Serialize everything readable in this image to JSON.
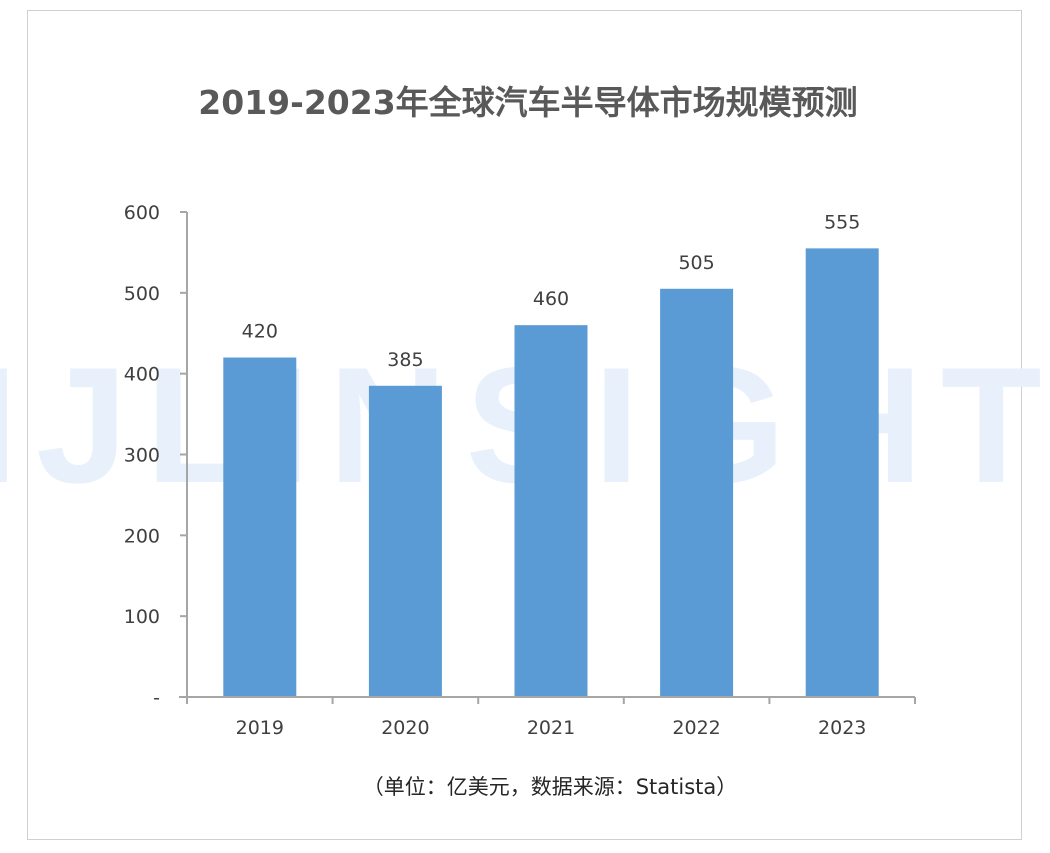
{
  "watermark": "JIJLINSIGHTS",
  "chart_data": {
    "type": "bar",
    "title": "2019-2023年全球汽车半导体市场规模预测",
    "subtitle": "（单位：亿美元，数据来源：Statista）",
    "categories": [
      "2019",
      "2020",
      "2021",
      "2022",
      "2023"
    ],
    "values": [
      420,
      385,
      460,
      505,
      555
    ],
    "data_labels": [
      "420",
      "385",
      "460",
      "505",
      "555"
    ],
    "ylim": [
      0,
      600
    ],
    "yticks": [
      0,
      100,
      200,
      300,
      400,
      500,
      600
    ],
    "ytick_labels": [
      "-",
      "100",
      "200",
      "300",
      "400",
      "500",
      "600"
    ],
    "grid": false,
    "bar_color": "#5b9bd5",
    "axis_color": "#a6a6a6",
    "text_color": "#404040",
    "title_color": "#595959"
  }
}
